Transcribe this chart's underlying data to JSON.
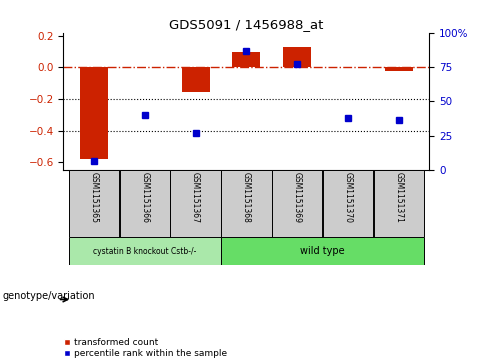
{
  "title": "GDS5091 / 1456988_at",
  "samples": [
    "GSM1151365",
    "GSM1151366",
    "GSM1151367",
    "GSM1151368",
    "GSM1151369",
    "GSM1151370",
    "GSM1151371"
  ],
  "transformed_count": [
    -0.58,
    0.003,
    -0.155,
    0.1,
    0.13,
    0.002,
    -0.022
  ],
  "percentile_rank_y": [
    -0.59,
    -0.3,
    -0.415,
    0.105,
    0.025,
    -0.32,
    -0.335
  ],
  "ylim_left": [
    -0.65,
    0.22
  ],
  "yticks_left": [
    -0.6,
    -0.4,
    -0.2,
    0.0,
    0.2
  ],
  "yticks_right": [
    0,
    25,
    50,
    75,
    100
  ],
  "ytick_right_labels": [
    "0",
    "25",
    "50",
    "75",
    "100%"
  ],
  "group1_label": "cystatin B knockout Cstb-/-",
  "group2_label": "wild type",
  "group1_color": "#aae8aa",
  "group2_color": "#66dd66",
  "bar_color": "#cc2200",
  "dot_color": "#0000cc",
  "genotype_label": "genotype/variation",
  "legend_bar_label": "transformed count",
  "legend_dot_label": "percentile rank within the sample",
  "background_color": "#ffffff",
  "tick_label_color_left": "#cc2200",
  "tick_label_color_right": "#0000cc",
  "hline_color": "#cc2200",
  "dotted_line_color": "#000000",
  "bar_width": 0.55,
  "sample_box_color": "#cccccc",
  "n_group1": 3,
  "n_group2": 4
}
